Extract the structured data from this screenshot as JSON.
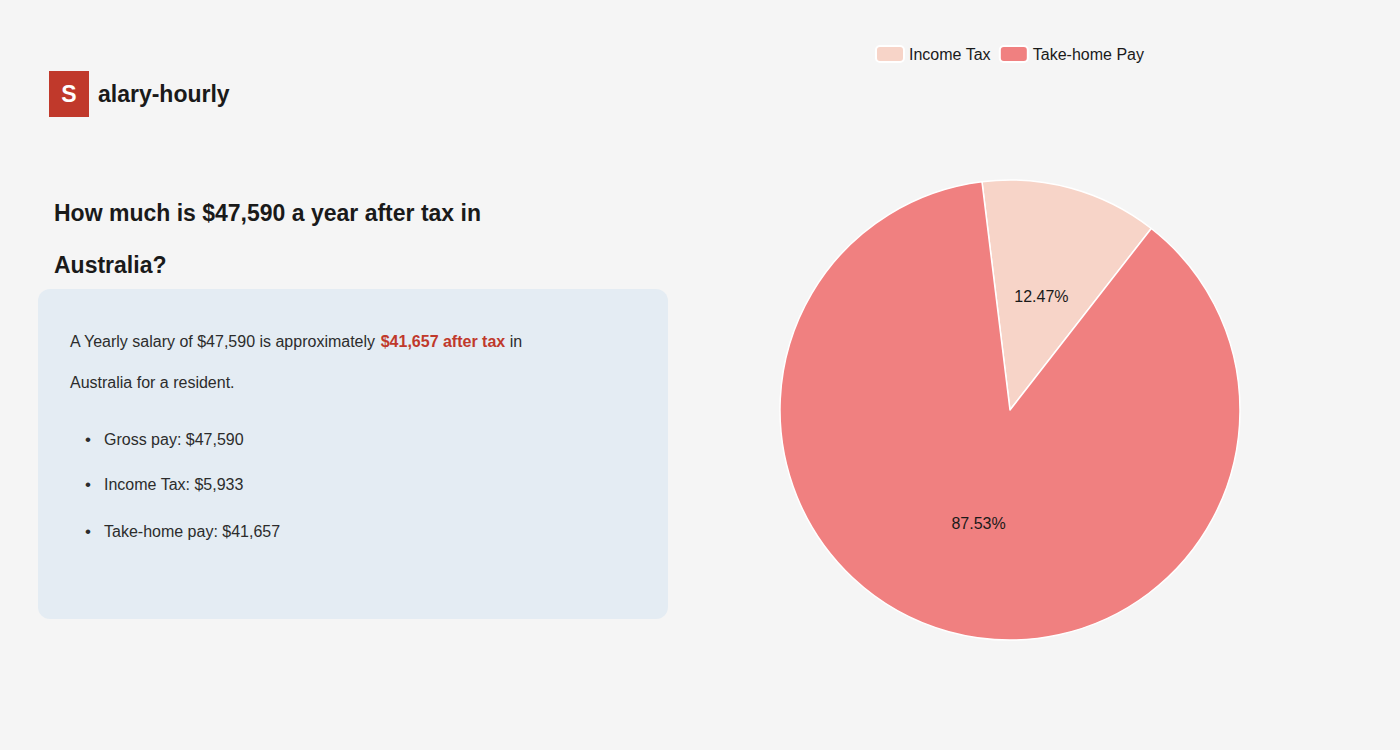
{
  "chart_data": {
    "type": "pie",
    "title": "How much is $47,590 a year after tax in\nAustralia?",
    "logo": [
      "S",
      "alary-hourly"
    ],
    "box_line1": [
      "A Yearly salary of $47,590 is approximately ",
      "$41,657 after tax",
      " in"
    ],
    "box_line2": "Australia for a resident.",
    "bullet": "•",
    "bullets": [
      "Gross pay: $47,590",
      "Income Tax: $5,933",
      "Take-home pay: $41,657"
    ],
    "categories": [
      "Income Tax",
      "Take-home Pay"
    ],
    "values": [
      12.47,
      87.53
    ],
    "value_labels": [
      "12.47%",
      "87.53%"
    ],
    "colors": [
      "#f7d4c8",
      "#f08080"
    ],
    "data_labels": true,
    "legend": "top"
  }
}
